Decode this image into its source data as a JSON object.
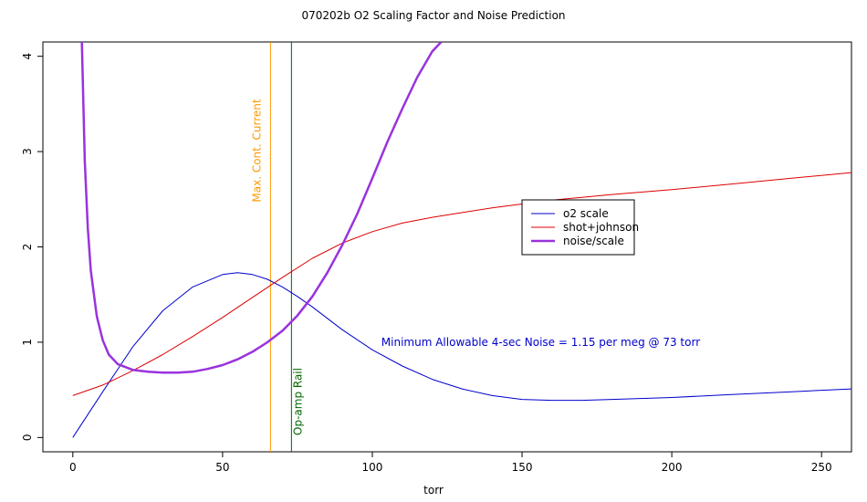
{
  "chart_data": {
    "type": "line",
    "title": "070202b   O2 Scaling Factor and Noise Prediction",
    "xlabel": "torr",
    "ylabel": "",
    "xlim": [
      -10,
      260
    ],
    "ylim": [
      -0.15,
      4.15
    ],
    "xticks": [
      0,
      50,
      100,
      150,
      200,
      250
    ],
    "yticks": [
      0,
      1,
      2,
      3,
      4
    ],
    "grid": false,
    "legend_position": "right",
    "series": [
      {
        "name": "o2 scale",
        "color": "#0000cc",
        "line_width": 1,
        "x": [
          0,
          10,
          20,
          30,
          40,
          50,
          55,
          60,
          65,
          70,
          75,
          80,
          90,
          100,
          110,
          120,
          130,
          140,
          150,
          160,
          170,
          180,
          200,
          220,
          240,
          260
        ],
        "y": [
          0,
          0.48,
          0.95,
          1.33,
          1.58,
          1.71,
          1.73,
          1.71,
          1.66,
          1.58,
          1.48,
          1.37,
          1.13,
          0.92,
          0.75,
          0.61,
          0.51,
          0.44,
          0.4,
          0.39,
          0.39,
          0.4,
          0.42,
          0.45,
          0.48,
          0.51
        ]
      },
      {
        "name": "shot+johnson",
        "color": "#dd0000",
        "line_width": 1,
        "x": [
          0,
          10,
          20,
          30,
          40,
          50,
          60,
          70,
          80,
          90,
          100,
          110,
          120,
          130,
          140,
          150,
          160,
          170,
          180,
          200,
          220,
          240,
          260
        ],
        "y": [
          0.44,
          0.55,
          0.7,
          0.87,
          1.06,
          1.26,
          1.47,
          1.68,
          1.88,
          2.04,
          2.16,
          2.25,
          2.31,
          2.36,
          2.41,
          2.45,
          2.49,
          2.52,
          2.55,
          2.6,
          2.66,
          2.72,
          2.78
        ]
      },
      {
        "name": "noise/scale",
        "color": "#9933dd",
        "line_width": 2.5,
        "x": [
          3,
          4,
          5,
          6,
          8,
          10,
          12,
          15,
          20,
          25,
          30,
          35,
          40,
          45,
          50,
          55,
          60,
          65,
          70,
          75,
          80,
          85,
          90,
          95,
          100,
          105,
          110,
          115,
          120,
          123
        ],
        "y": [
          4.15,
          2.9,
          2.2,
          1.75,
          1.27,
          1.02,
          0.87,
          0.77,
          0.71,
          0.69,
          0.68,
          0.68,
          0.69,
          0.72,
          0.76,
          0.82,
          0.9,
          1.0,
          1.12,
          1.28,
          1.48,
          1.73,
          2.02,
          2.35,
          2.72,
          3.1,
          3.45,
          3.78,
          4.05,
          4.15
        ]
      }
    ],
    "vlines": [
      {
        "x": 66,
        "color": "#ff9900",
        "label": "Max. Cont. Current"
      },
      {
        "x": 73,
        "color": "#006600",
        "label": "Op-amp Rail"
      }
    ],
    "annotation": {
      "text": "Minimum Allowable 4-sec Noise =  1.15  per meg @  73  torr",
      "x": 103,
      "y": 1.0,
      "color": "#0000cc"
    },
    "legend": [
      "o2 scale",
      "shot+johnson",
      "noise/scale"
    ]
  }
}
